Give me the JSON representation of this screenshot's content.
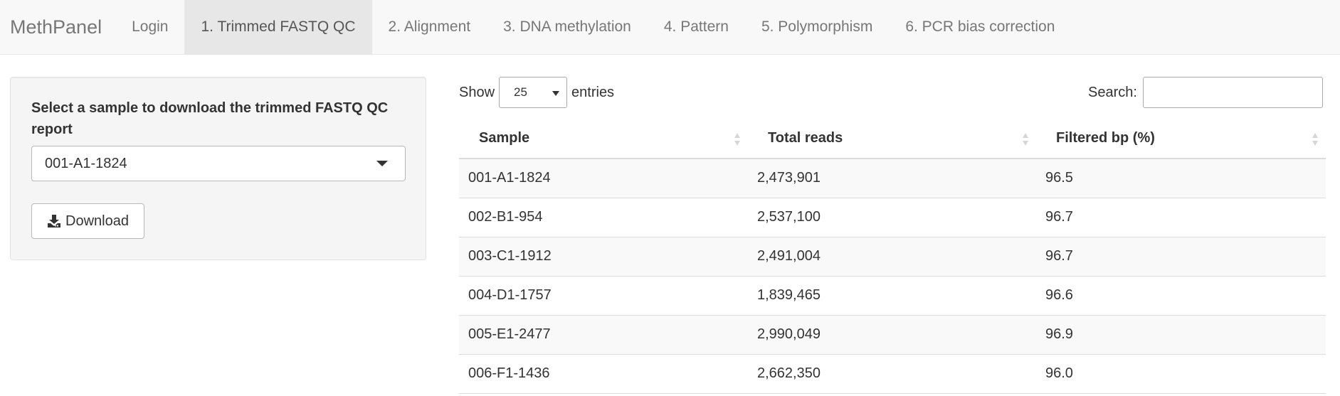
{
  "navbar": {
    "brand": "MethPanel",
    "tabs": [
      {
        "label": "Login",
        "active": false
      },
      {
        "label": "1. Trimmed FASTQ QC",
        "active": true
      },
      {
        "label": "2. Alignment",
        "active": false
      },
      {
        "label": "3. DNA methylation",
        "active": false
      },
      {
        "label": "4. Pattern",
        "active": false
      },
      {
        "label": "5. Polymorphism",
        "active": false
      },
      {
        "label": "6. PCR bias correction",
        "active": false
      }
    ]
  },
  "sidebar": {
    "label": "Select a sample to download the trimmed FASTQ QC report",
    "selected_sample": "001-A1-1824",
    "download_label": "Download",
    "icons": {
      "dropdown": "caret-down-icon",
      "download": "download-icon"
    }
  },
  "table_controls": {
    "show_label": "Show",
    "page_length": "25",
    "entries_label": "entries",
    "search_label": "Search:",
    "search_value": ""
  },
  "table": {
    "columns": [
      "Sample",
      "Total reads",
      "Filtered bp (%)"
    ],
    "rows": [
      [
        "001-A1-1824",
        "2,473,901",
        "96.5"
      ],
      [
        "002-B1-954",
        "2,537,100",
        "96.7"
      ],
      [
        "003-C1-1912",
        "2,491,004",
        "96.7"
      ],
      [
        "004-D1-1757",
        "1,839,465",
        "96.6"
      ],
      [
        "005-E1-2477",
        "2,990,049",
        "96.9"
      ],
      [
        "006-F1-1436",
        "2,662,350",
        "96.0"
      ]
    ]
  },
  "colors": {
    "navbar_bg": "#f8f8f8",
    "active_tab_bg": "#e7e7e7",
    "panel_bg": "#f5f5f5",
    "stripe": "#f9f9f9"
  }
}
